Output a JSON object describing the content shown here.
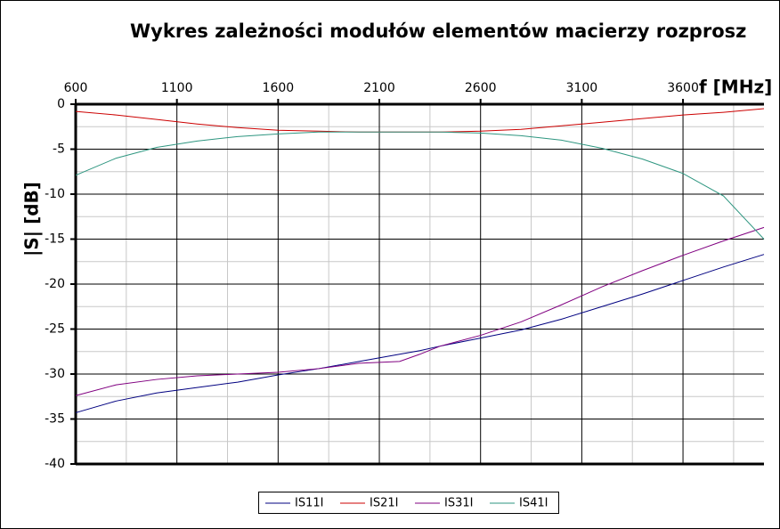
{
  "chart_data": {
    "type": "line",
    "title": "Wykres zależności modułów elementów macierzy rozprosz",
    "x_label": "f [MHz]",
    "y_label": "|S| [dB]",
    "x": [
      600,
      800,
      1000,
      1200,
      1400,
      1600,
      1800,
      2000,
      2200,
      2300,
      2400,
      2600,
      2800,
      3000,
      3200,
      3400,
      3600,
      3800,
      4000
    ],
    "series": [
      {
        "name": "IS11I",
        "color": "#000080",
        "values": [
          -34.3,
          -33.0,
          -32.1,
          -31.5,
          -30.9,
          -30.1,
          -29.4,
          -28.6,
          -27.8,
          -27.4,
          -26.9,
          -26.0,
          -25.1,
          -23.9,
          -22.5,
          -21.1,
          -19.6,
          -18.1,
          -16.7
        ]
      },
      {
        "name": "IS21I",
        "color": "#cc0000",
        "values": [
          -0.8,
          -1.2,
          -1.7,
          -2.2,
          -2.6,
          -2.9,
          -3.0,
          -3.1,
          -3.1,
          -3.1,
          -3.1,
          -3.0,
          -2.8,
          -2.4,
          -2.0,
          -1.6,
          -1.2,
          -0.9,
          -0.5
        ]
      },
      {
        "name": "IS31I",
        "color": "#800080",
        "values": [
          -32.4,
          -31.2,
          -30.6,
          -30.2,
          -30.0,
          -29.8,
          -29.4,
          -28.8,
          -28.6,
          -27.8,
          -26.9,
          -25.7,
          -24.2,
          -22.3,
          -20.3,
          -18.5,
          -16.8,
          -15.2,
          -13.7
        ]
      },
      {
        "name": "IS41I",
        "color": "#2e9680",
        "values": [
          -7.9,
          -6.0,
          -4.8,
          -4.1,
          -3.6,
          -3.3,
          -3.1,
          -3.1,
          -3.1,
          -3.1,
          -3.1,
          -3.2,
          -3.5,
          -4.0,
          -4.9,
          -6.1,
          -7.7,
          -10.2,
          -15.0
        ]
      }
    ],
    "xlim": [
      600,
      4000
    ],
    "ylim": [
      -40,
      0
    ],
    "xticks": [
      600,
      1100,
      1600,
      2100,
      2600,
      3100,
      3600
    ],
    "yticks": [
      0,
      -5,
      -10,
      -15,
      -20,
      -25,
      -30,
      -35,
      -40
    ],
    "grid": true,
    "legend": "bottom"
  }
}
